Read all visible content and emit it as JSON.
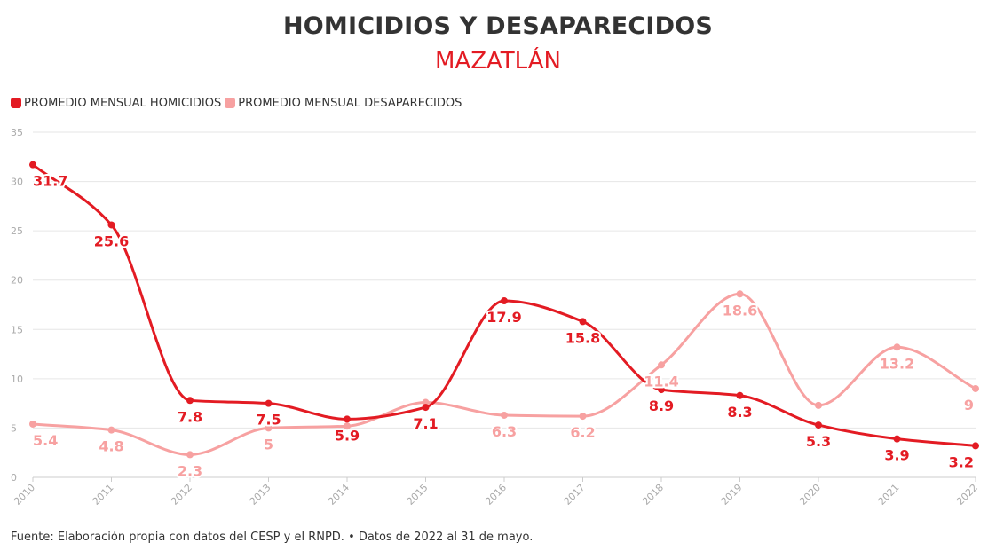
{
  "colors": {
    "homicidios": "#e31b23",
    "desaparecidos": "#f7a1a1",
    "grid": "#e6e6e6",
    "axis_text": "#aaaaaa",
    "title": "#333333"
  },
  "chart_data": {
    "type": "line",
    "title": "HOMICIDIOS Y DESAPARECIDOS",
    "subtitle": "MAZATLÁN",
    "categories": [
      "2010",
      "2011",
      "2012",
      "2013",
      "2014",
      "2015",
      "2016",
      "2017",
      "2018",
      "2019",
      "2020",
      "2021",
      "2022"
    ],
    "series": [
      {
        "name": "PROMEDIO MENSUAL HOMICIDIOS",
        "color": "#e31b23",
        "values": [
          31.7,
          25.6,
          7.8,
          7.5,
          5.9,
          7.1,
          17.9,
          15.8,
          8.9,
          8.3,
          5.3,
          3.9,
          3.2
        ],
        "labels": [
          "31.7",
          "25.6",
          "7.8",
          "7.5",
          "5.9",
          "7.1",
          "17.9",
          "15.8",
          "8.9",
          "8.3",
          "5.3",
          "3.9",
          "3.2"
        ]
      },
      {
        "name": "PROMEDIO MENSUAL DESAPARECIDOS",
        "color": "#f7a1a1",
        "values": [
          5.4,
          4.8,
          2.3,
          5,
          5.2,
          7.6,
          6.3,
          6.2,
          11.4,
          18.6,
          7.3,
          13.2,
          9
        ],
        "labels": [
          "5.4",
          "4.8",
          "2.3",
          "5",
          null,
          null,
          "6.3",
          "6.2",
          "11.4",
          "18.6",
          null,
          "13.2",
          "9"
        ]
      }
    ],
    "y_ticks": [
      "0",
      "5",
      "10",
      "15",
      "20",
      "25",
      "30",
      "35"
    ],
    "ylim": [
      0,
      35
    ],
    "grid": true,
    "legend": "top-left"
  },
  "source_text": "Fuente: Elaboración propia con datos del CESP y el RNPD. • Datos de 2022 al 31 de mayo."
}
